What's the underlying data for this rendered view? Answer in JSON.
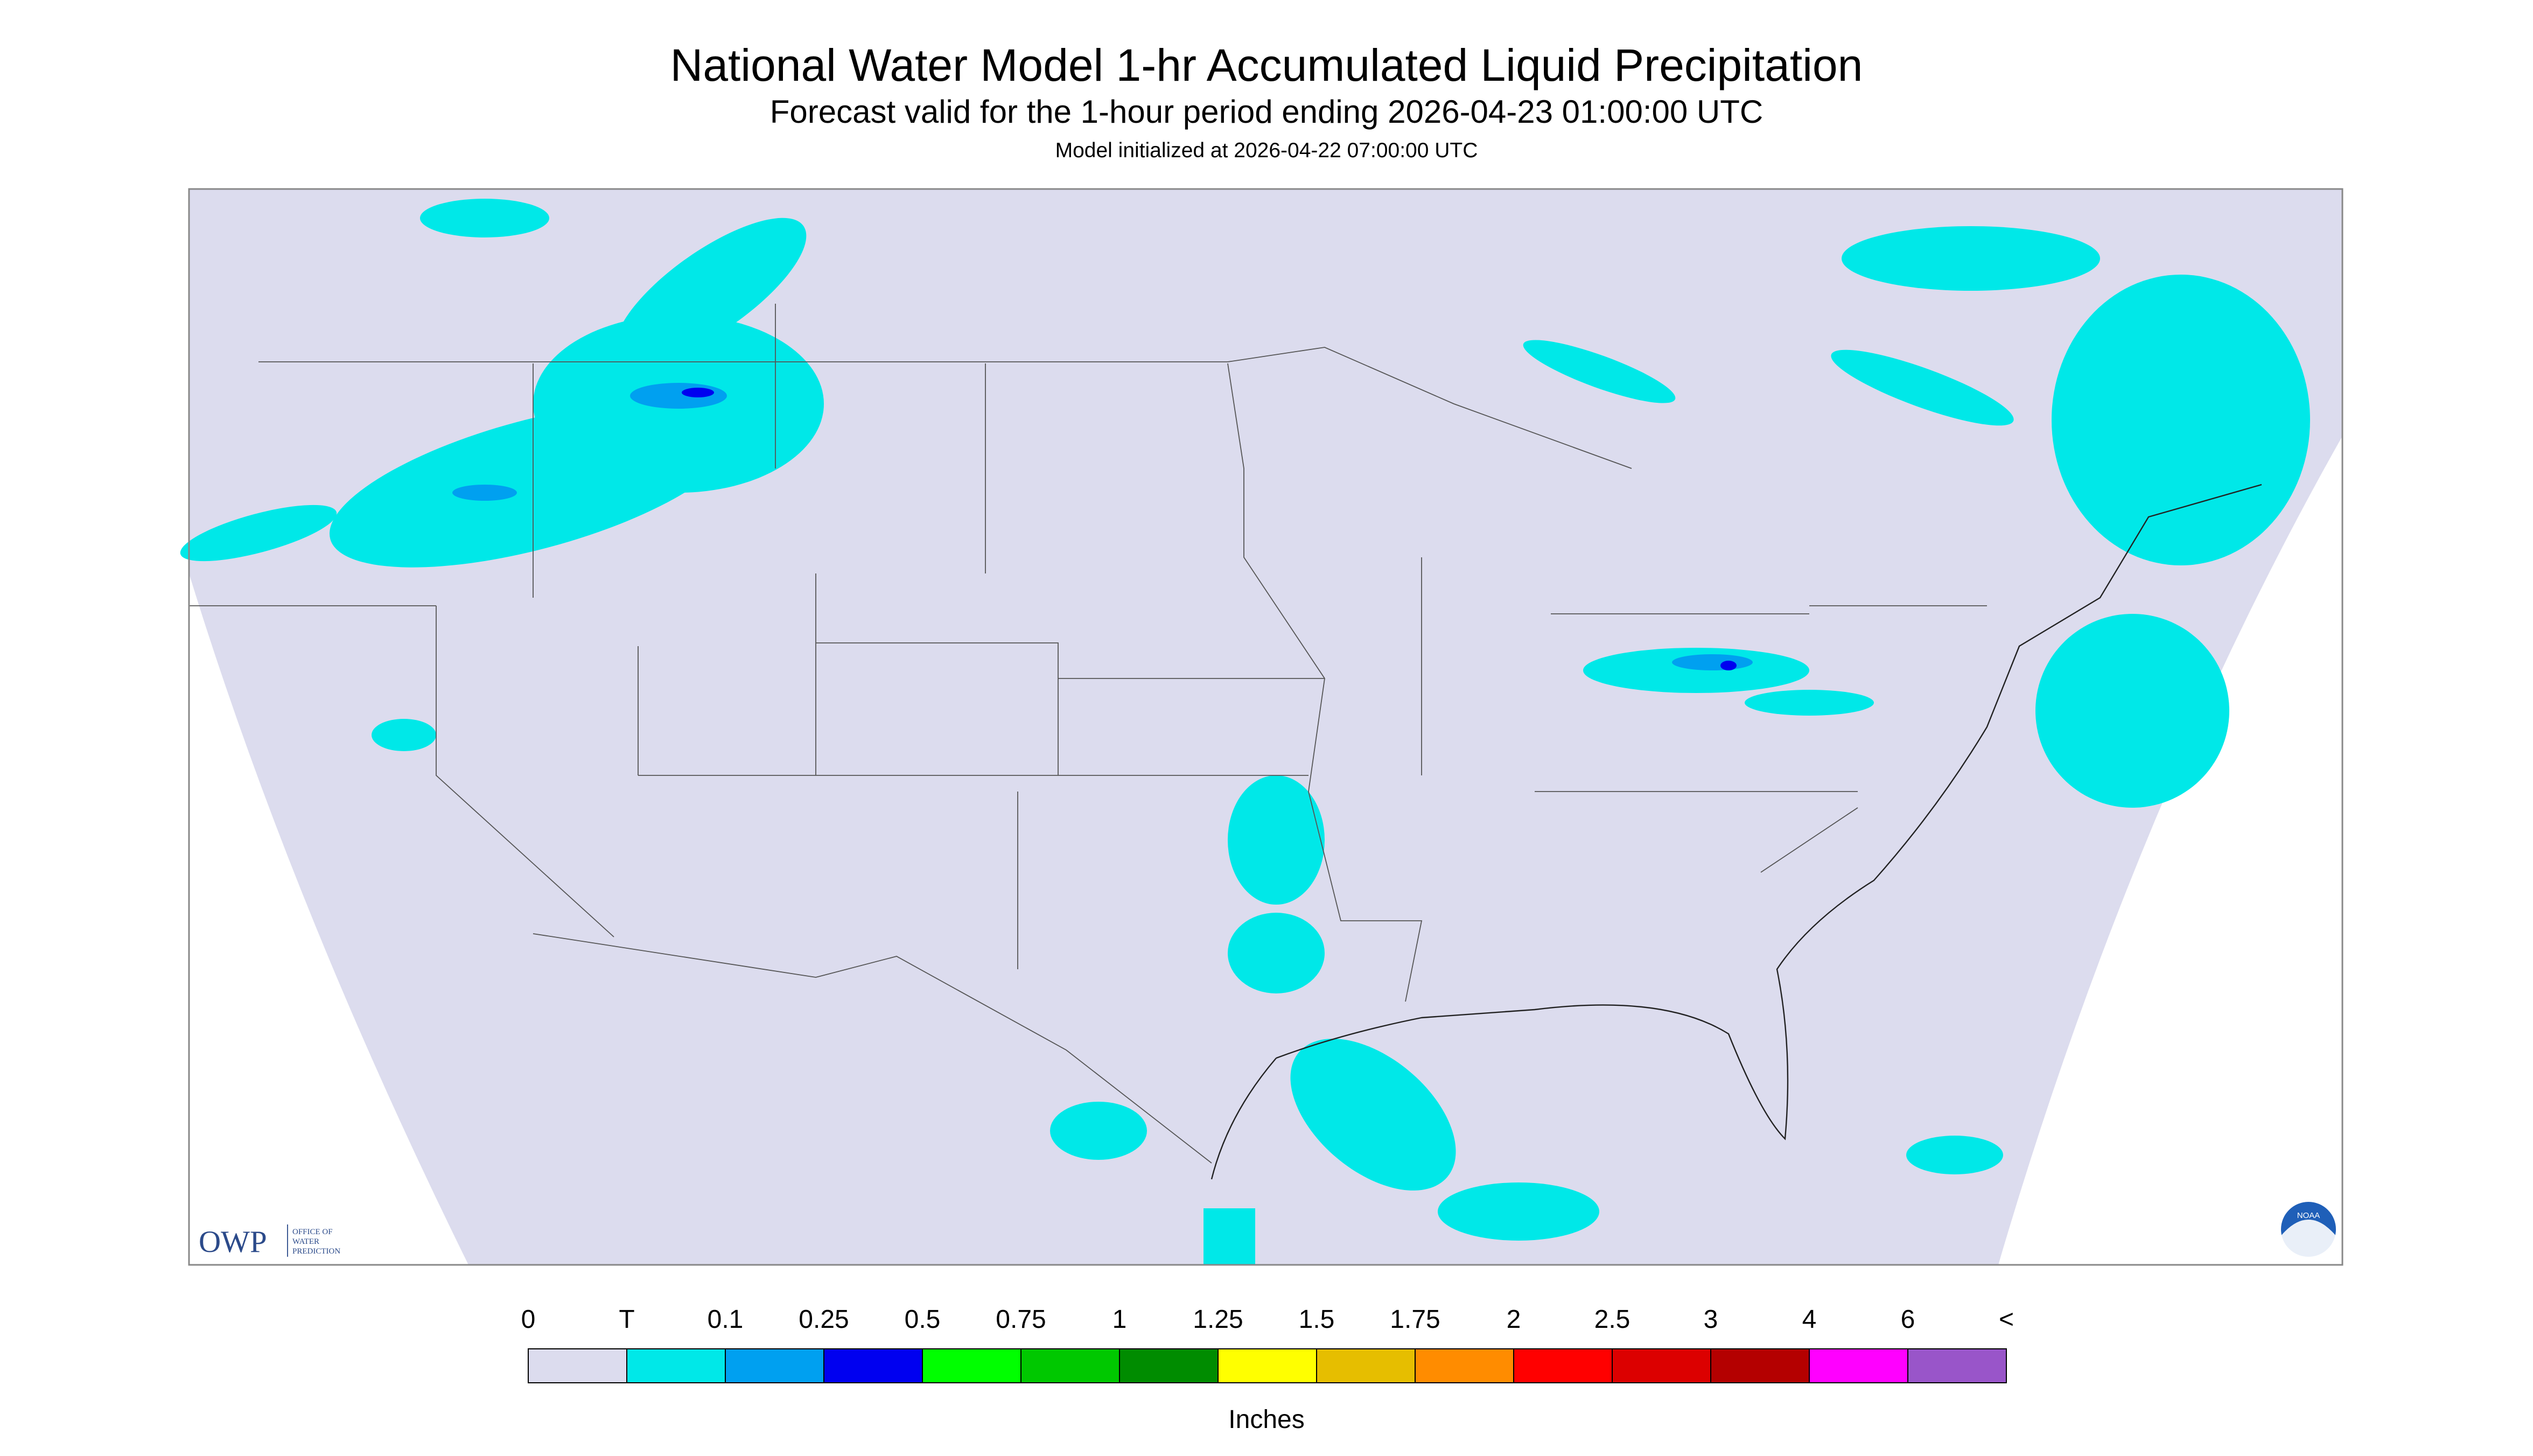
{
  "header": {
    "title": "National Water Model 1-hr Accumulated Liquid Precipitation",
    "subtitle": "Forecast valid for the 1-hour period ending 2026-04-23 01:00:00 UTC",
    "init": "Model initialized at 2026-04-22 07:00:00 UTC"
  },
  "logos": {
    "owp": "OWP",
    "owp_full": [
      "OFFICE OF",
      "WATER",
      "PREDICTION"
    ],
    "noaa": "NOAA"
  },
  "legend": {
    "labels": [
      "0",
      "T",
      "0.1",
      "0.25",
      "0.5",
      "0.75",
      "1",
      "1.25",
      "1.5",
      "1.75",
      "2",
      "2.5",
      "3",
      "4",
      "6",
      "<"
    ],
    "colors": [
      "#dcdcee",
      "#00e8e8",
      "#00a0f0",
      "#0000f0",
      "#00ff00",
      "#00c800",
      "#008c00",
      "#ffff00",
      "#e6be00",
      "#ff8c00",
      "#ff0000",
      "#dc0000",
      "#b40000",
      "#ff00ff",
      "#9955c9"
    ],
    "unit": "Inches"
  }
}
